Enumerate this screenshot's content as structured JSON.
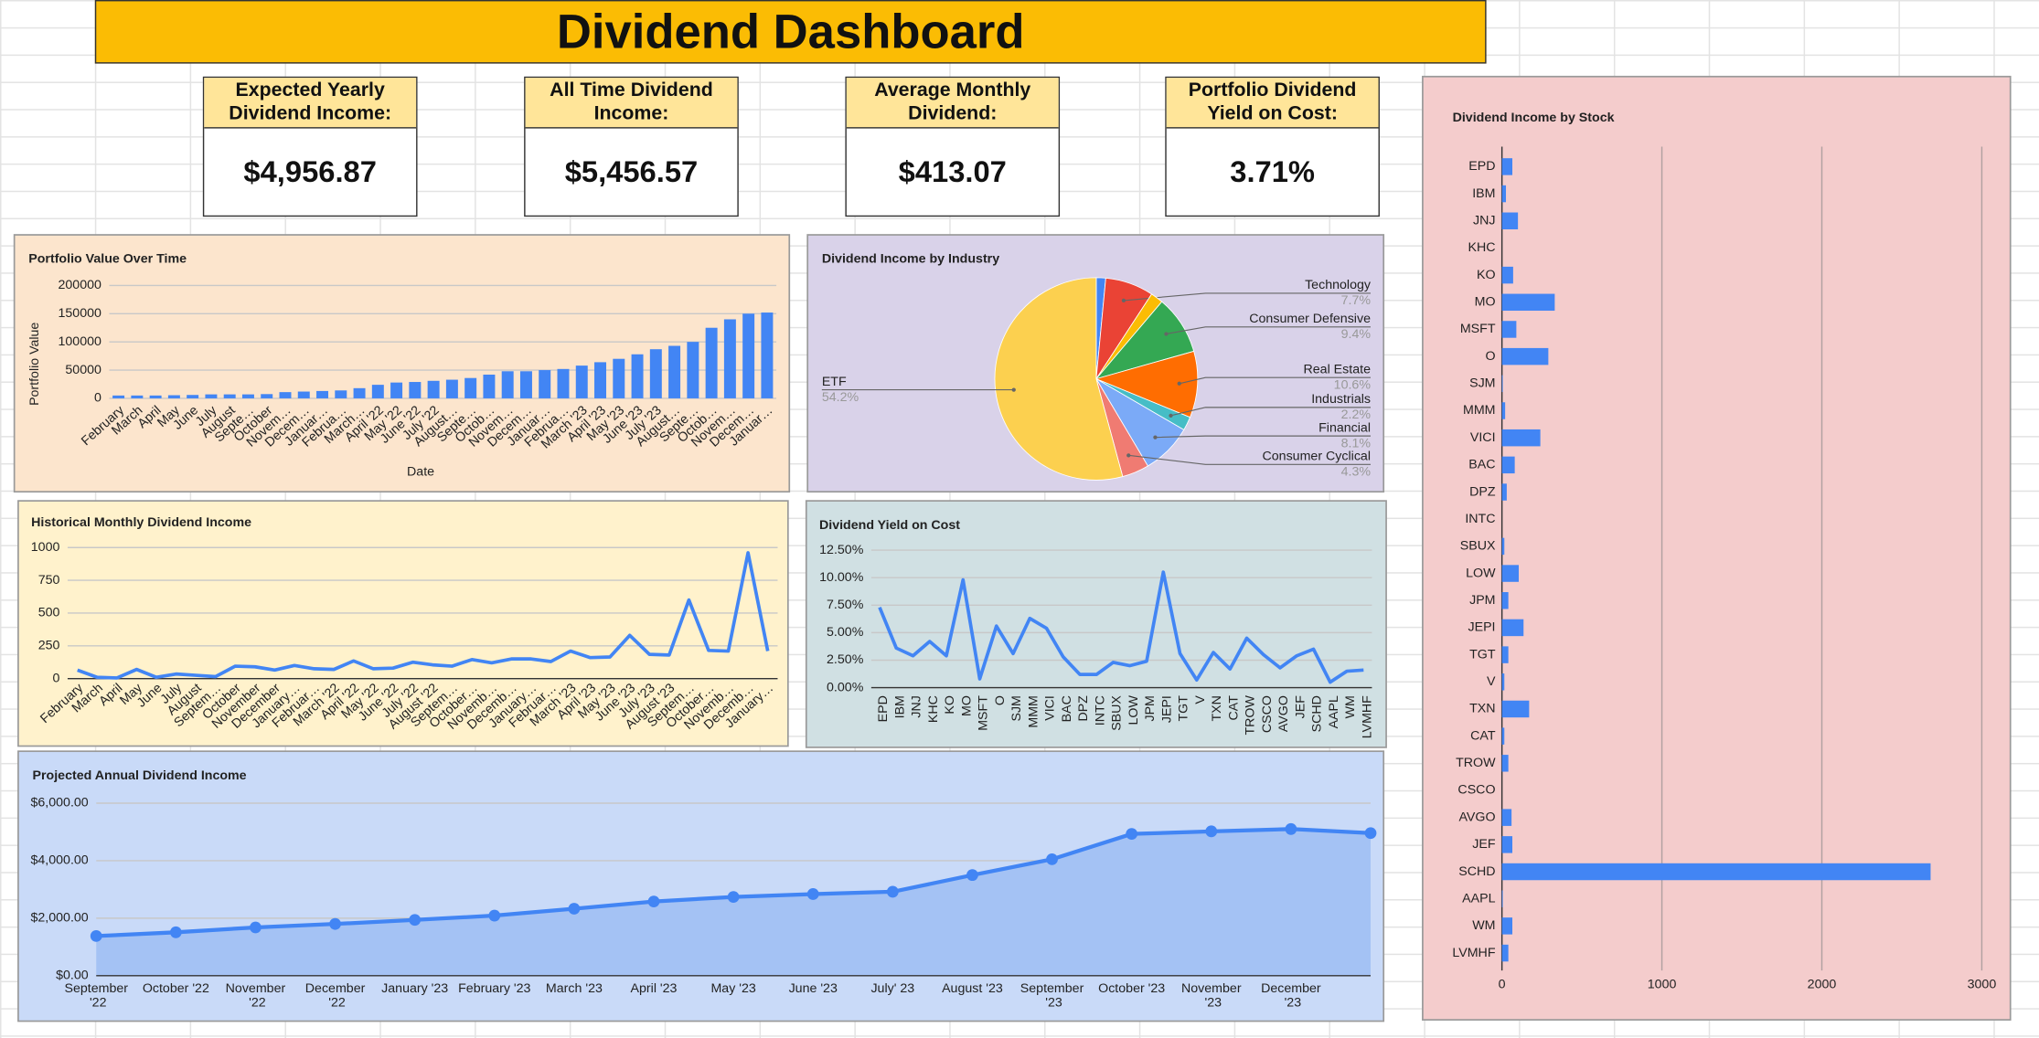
{
  "title": "Dividend Dashboard",
  "cards": [
    {
      "label": "Expected Yearly Dividend Income:",
      "value": "$4,956.87"
    },
    {
      "label": "All Time Dividend Income:",
      "value": "$5,456.57"
    },
    {
      "label": "Average Monthly Dividend:",
      "value": "$413.07"
    },
    {
      "label": "Portfolio Dividend Yield on Cost:",
      "value": "3.71%"
    }
  ],
  "chart_data": [
    {
      "type": "bar",
      "title": "Portfolio Value Over Time",
      "x_label": "Date",
      "y_label": "Portfolio Value",
      "categories": [
        "February",
        "March",
        "April",
        "May",
        "June",
        "July",
        "August",
        "Septe…",
        "October",
        "Novem…",
        "Decem…",
        "Januar…",
        "Februa…",
        "March…",
        "April '22",
        "May '22",
        "June '22",
        "July '22",
        "August…",
        "Septe…",
        "Octob…",
        "Novem…",
        "Decem…",
        "Januar…",
        "Februa…",
        "March '23",
        "April '23",
        "May '23",
        "June '23",
        "July '23",
        "August…",
        "Septe…",
        "Octob…",
        "Novem…",
        "Decem…",
        "Januar…"
      ],
      "values": [
        5000,
        5000,
        5000,
        5500,
        6000,
        7000,
        7000,
        7000,
        7500,
        11000,
        12000,
        13000,
        14000,
        18000,
        24000,
        28000,
        29000,
        31000,
        33000,
        36000,
        42000,
        48000,
        48000,
        50000,
        52000,
        58000,
        64000,
        70000,
        78000,
        87000,
        93000,
        100000,
        125000,
        140000,
        150000,
        152000
      ],
      "color": "#4285f4",
      "ylim": [
        0,
        200000
      ],
      "yticks": [
        0,
        50000,
        100000,
        150000,
        200000
      ],
      "grid": true
    },
    {
      "type": "pie",
      "title": "Dividend Income by Industry",
      "categories": [
        null,
        "Technology",
        null,
        "Consumer Defensive",
        "Real Estate",
        "Industrials",
        "Financial",
        "Consumer Cyclical",
        "ETF"
      ],
      "values": [
        1.5,
        7.7,
        2.0,
        9.4,
        10.6,
        2.2,
        8.1,
        4.3,
        54.2
      ],
      "value_labels": [
        null,
        "7.7%",
        null,
        "9.4%",
        "10.6%",
        "2.2%",
        "8.1%",
        "4.3%",
        "54.2%"
      ],
      "colors": [
        "#4285f4",
        "#ea4335",
        "#fbbc04",
        "#34a853",
        "#ff6d01",
        "#46bdc6",
        "#7baaf7",
        "#f07b72",
        "#fcd04f"
      ]
    },
    {
      "type": "line",
      "title": "Historical Monthly Dividend Income",
      "categories": [
        "February",
        "March",
        "April",
        "May",
        "June",
        "July",
        "August",
        "Septem…",
        "October",
        "November",
        "December",
        "January…",
        "Februar…",
        "March '22",
        "April '22",
        "May '22",
        "June '22",
        "July '22",
        "August '22",
        "Septem…",
        "October…",
        "Novemb…",
        "Decemb…",
        "January…",
        "Februar…",
        "March '23",
        "April '23",
        "May '23",
        "June '23",
        "July '23",
        "August '23",
        "Septem…",
        "October…",
        "Novemb…",
        "Decemb…",
        "January…"
      ],
      "values": [
        65,
        10,
        5,
        70,
        10,
        35,
        25,
        15,
        95,
        90,
        65,
        100,
        75,
        70,
        135,
        75,
        80,
        125,
        105,
        95,
        145,
        120,
        150,
        150,
        130,
        210,
        160,
        165,
        330,
        185,
        180,
        600,
        215,
        210,
        960,
        210
      ],
      "color": "#4285f4",
      "ylim": [
        0,
        1000
      ],
      "yticks": [
        0,
        250,
        500,
        750,
        1000
      ],
      "grid": true
    },
    {
      "type": "line",
      "title": "Dividend Yield on Cost",
      "categories": [
        "EPD",
        "IBM",
        "JNJ",
        "KHC",
        "KO",
        "MO",
        "MSFT",
        "O",
        "SJM",
        "MMM",
        "VICI",
        "BAC",
        "DPZ",
        "INTC",
        "SBUX",
        "LOW",
        "JPM",
        "JEPI",
        "TGT",
        "V",
        "TXN",
        "CAT",
        "TROW",
        "CSCO",
        "AVGO",
        "JEF",
        "SCHD",
        "AAPL",
        "WM",
        "LVMHF"
      ],
      "values": [
        7.3,
        3.6,
        2.9,
        4.2,
        2.9,
        9.8,
        0.8,
        5.6,
        3.1,
        6.3,
        5.4,
        2.8,
        1.2,
        1.2,
        2.3,
        2.0,
        2.4,
        10.5,
        3.1,
        0.7,
        3.2,
        1.7,
        4.5,
        3.0,
        1.8,
        2.9,
        3.5,
        0.5,
        1.5,
        1.6
      ],
      "color": "#4285f4",
      "ylim": [
        0,
        12.5
      ],
      "yticks": [
        {
          "value": 0,
          "label": "0.00%"
        },
        {
          "value": 2.5,
          "label": "2.50%"
        },
        {
          "value": 5,
          "label": "5.00%"
        },
        {
          "value": 7.5,
          "label": "7.50%"
        },
        {
          "value": 10,
          "label": "10.00%"
        },
        {
          "value": 12.5,
          "label": "12.50%"
        }
      ],
      "grid": true
    },
    {
      "type": "area",
      "title": "Projected Annual Dividend Income",
      "categories": [
        "September '22",
        "October '22",
        "November '22",
        "December '22",
        "January '23",
        "February '23",
        "March '23",
        "April '23",
        "May '23",
        "June '23",
        "July' 23",
        "August '23",
        "September '23",
        "October '23",
        "November '23",
        "December '23",
        null
      ],
      "values": [
        1380,
        1510,
        1680,
        1800,
        1940,
        2090,
        2330,
        2580,
        2740,
        2840,
        2920,
        3500,
        4050,
        4930,
        5020,
        5100,
        4960
      ],
      "color": "#4285f4",
      "ylim": [
        0,
        6000
      ],
      "yticks": [
        {
          "value": 0,
          "label": "$0.00"
        },
        {
          "value": 2000,
          "label": "$2,000.00"
        },
        {
          "value": 4000,
          "label": "$4,000.00"
        },
        {
          "value": 6000,
          "label": "$6,000.00"
        }
      ],
      "grid": true
    },
    {
      "type": "hbar",
      "title": "Dividend Income by Stock",
      "categories": [
        "EPD",
        "IBM",
        "JNJ",
        "KHC",
        "KO",
        "MO",
        "MSFT",
        "O",
        "SJM",
        "MMM",
        "VICI",
        "BAC",
        "DPZ",
        "INTC",
        "SBUX",
        "LOW",
        "JPM",
        "JEPI",
        "TGT",
        "V",
        "TXN",
        "CAT",
        "TROW",
        "CSCO",
        "AVGO",
        "JEF",
        "SCHD",
        "AAPL",
        "WM",
        "LVMHF"
      ],
      "values": [
        65,
        25,
        100,
        0,
        70,
        330,
        90,
        290,
        5,
        20,
        240,
        80,
        30,
        0,
        15,
        105,
        40,
        135,
        40,
        15,
        170,
        15,
        40,
        0,
        60,
        65,
        2680,
        5,
        65,
        40
      ],
      "color": "#4285f4",
      "xlim": [
        0,
        3000
      ],
      "xticks": [
        0,
        1000,
        2000,
        3000
      ],
      "grid": true
    }
  ]
}
